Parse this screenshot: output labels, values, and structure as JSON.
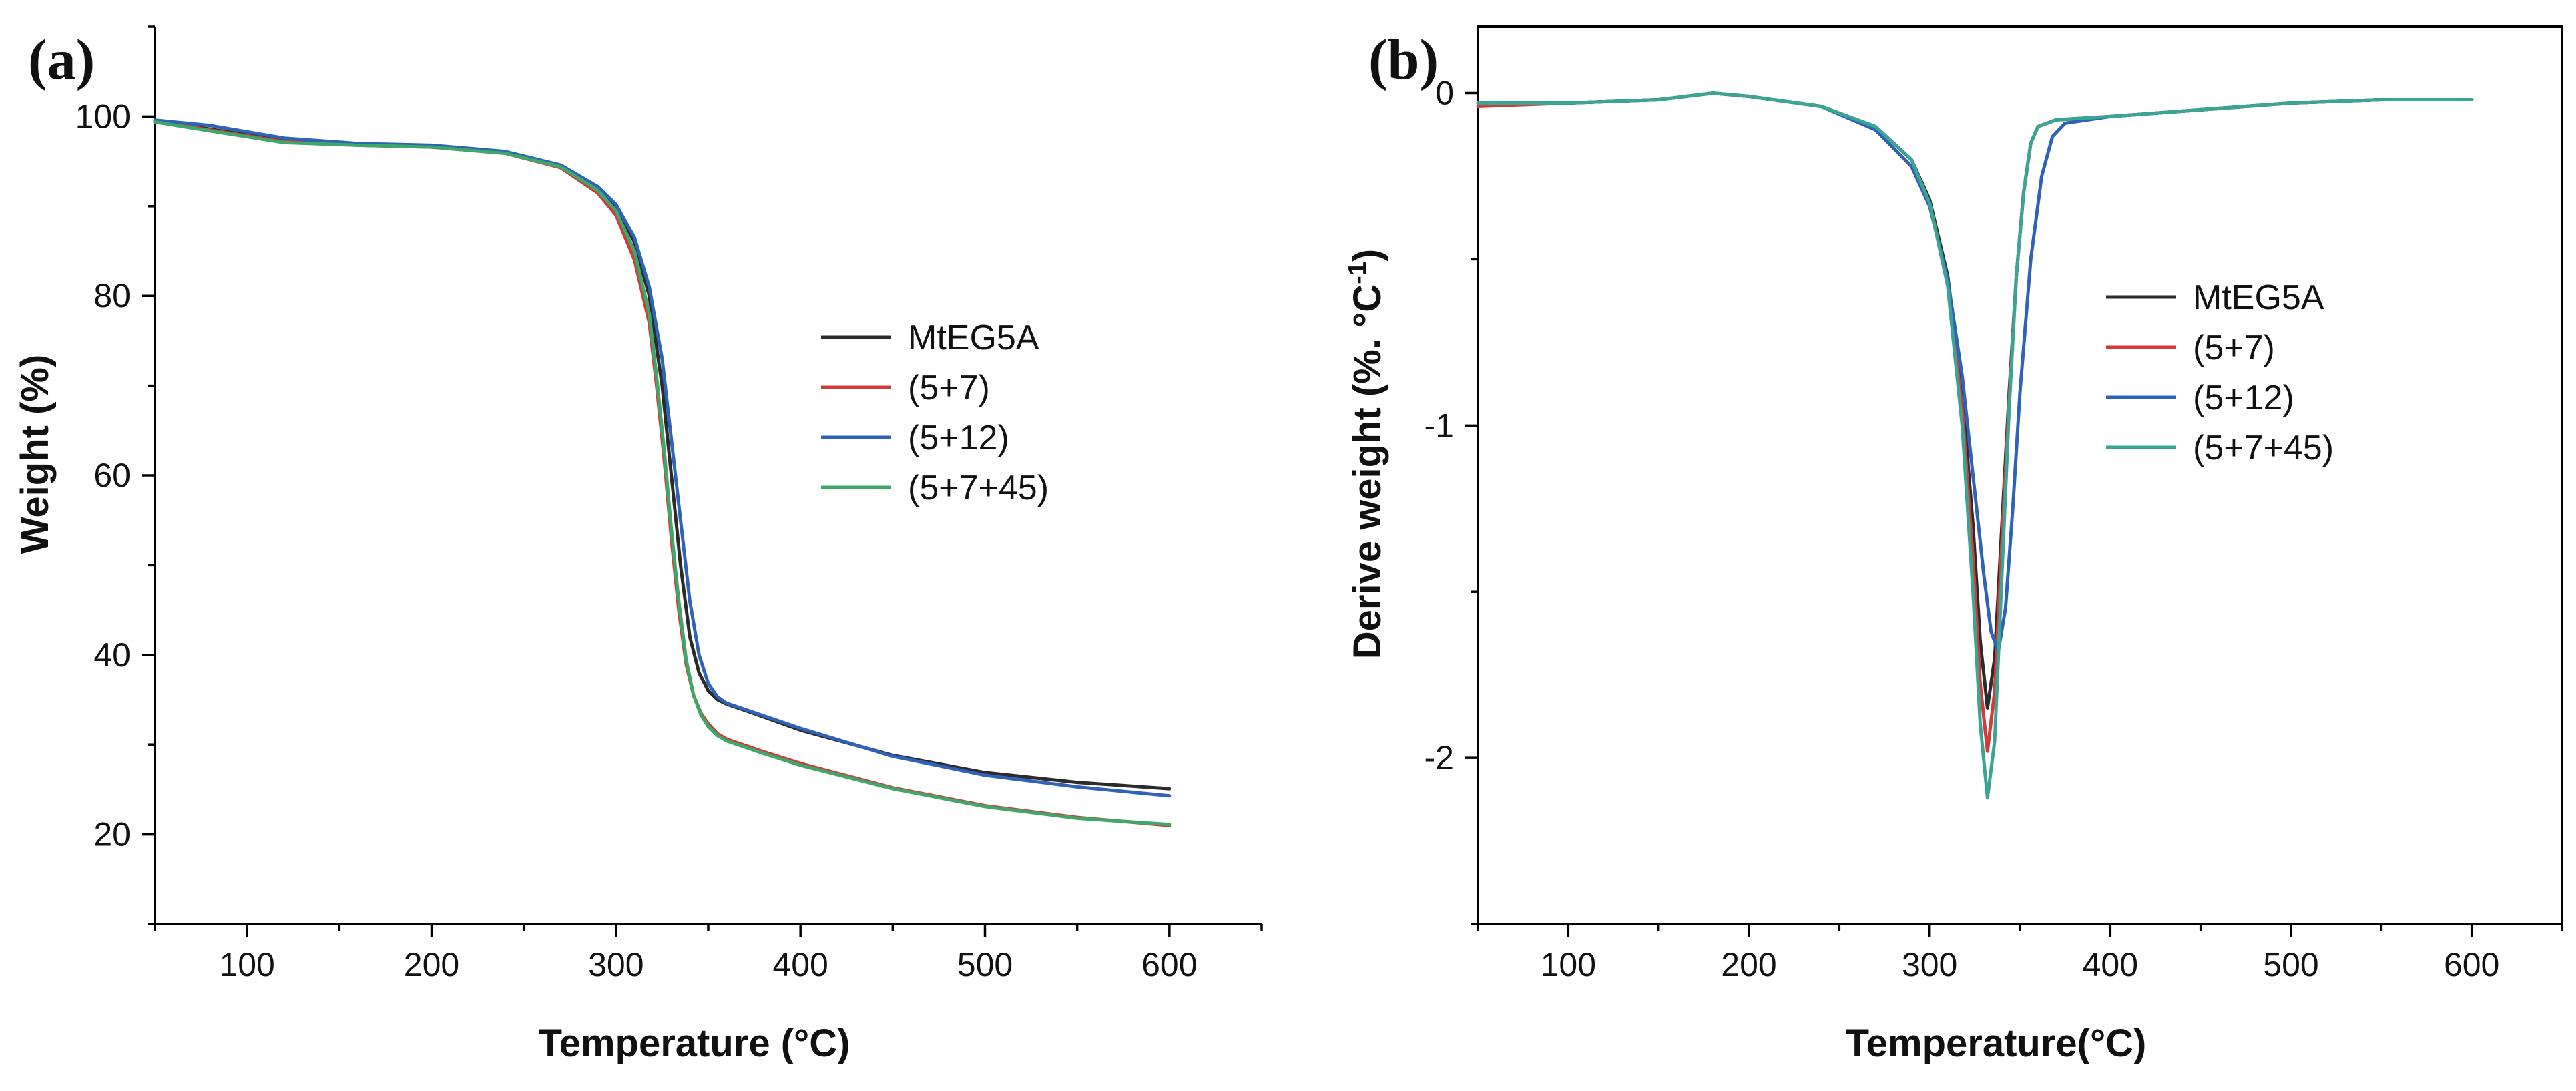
{
  "chart_data": [
    {
      "panel_label": "(a)",
      "type": "line",
      "xlabel": "Temperature (°C)",
      "ylabel": "Weight (%)",
      "xlim": [
        50,
        650
      ],
      "ylim": [
        10,
        110
      ],
      "xticks": [
        100,
        200,
        300,
        400,
        500,
        600
      ],
      "xtick_labels": [
        "100",
        "200",
        "300",
        "400",
        "500",
        "600"
      ],
      "yticks": [
        20,
        40,
        60,
        80,
        100
      ],
      "ytick_labels": [
        "20",
        "40",
        "60",
        "80",
        "100"
      ],
      "legend_position": "center-right",
      "series": [
        {
          "name": "MtEG5A",
          "color": "#2b2b2b",
          "x": [
            50,
            80,
            120,
            160,
            200,
            240,
            270,
            290,
            300,
            310,
            318,
            325,
            330,
            335,
            340,
            345,
            350,
            355,
            360,
            370,
            400,
            450,
            500,
            550,
            600
          ],
          "y": [
            99.5,
            98.6,
            97.3,
            96.9,
            96.7,
            96.0,
            94.5,
            92.0,
            90.0,
            86.0,
            80.0,
            70.0,
            60.0,
            50.0,
            42.0,
            38.0,
            36.0,
            35.0,
            34.5,
            33.8,
            31.6,
            28.8,
            26.9,
            25.8,
            25.1
          ]
        },
        {
          "name": "(5+7)",
          "color": "#d43a3a",
          "x": [
            50,
            80,
            120,
            160,
            200,
            240,
            270,
            290,
            300,
            310,
            318,
            322,
            326,
            330,
            334,
            338,
            342,
            346,
            350,
            355,
            360,
            380,
            400,
            450,
            500,
            550,
            600
          ],
          "y": [
            99.5,
            98.5,
            97.2,
            96.8,
            96.6,
            95.9,
            94.3,
            91.5,
            89.0,
            84.0,
            77.0,
            70.0,
            62.0,
            53.0,
            45.0,
            39.0,
            35.5,
            33.5,
            32.3,
            31.2,
            30.6,
            29.2,
            27.9,
            25.2,
            23.2,
            21.9,
            21.0
          ]
        },
        {
          "name": "(5+12)",
          "color": "#2e63b8",
          "x": [
            50,
            80,
            120,
            160,
            200,
            240,
            270,
            290,
            300,
            310,
            318,
            325,
            330,
            335,
            340,
            345,
            350,
            355,
            360,
            370,
            400,
            450,
            500,
            550,
            600
          ],
          "y": [
            99.6,
            99.0,
            97.6,
            97.0,
            96.8,
            96.1,
            94.6,
            92.2,
            90.2,
            86.5,
            81.0,
            73.0,
            64.0,
            55.0,
            46.0,
            40.0,
            36.8,
            35.3,
            34.6,
            33.9,
            31.8,
            28.7,
            26.6,
            25.3,
            24.3
          ]
        },
        {
          "name": "(5+7+45)",
          "color": "#3da86a",
          "x": [
            50,
            80,
            120,
            160,
            200,
            240,
            270,
            290,
            300,
            310,
            318,
            322,
            326,
            330,
            334,
            338,
            342,
            346,
            350,
            355,
            360,
            380,
            400,
            450,
            500,
            550,
            600
          ],
          "y": [
            99.4,
            98.4,
            97.1,
            96.8,
            96.6,
            95.9,
            94.4,
            91.8,
            89.5,
            85.0,
            78.0,
            71.0,
            63.0,
            54.0,
            46.0,
            39.5,
            35.5,
            33.3,
            32.0,
            31.0,
            30.4,
            29.0,
            27.7,
            25.1,
            23.1,
            21.8,
            21.1
          ]
        }
      ]
    },
    {
      "panel_label": "(b)",
      "type": "line",
      "xlabel": "Temperature(°C)",
      "ylabel_main": "Derive weight (%. °C",
      "ylabel_sup": "-1",
      "ylabel_end": ")",
      "xlim": [
        50,
        650
      ],
      "ylim": [
        -2.5,
        0.2
      ],
      "xticks": [
        100,
        200,
        300,
        400,
        500,
        600
      ],
      "xtick_labels": [
        "100",
        "200",
        "300",
        "400",
        "500",
        "600"
      ],
      "yticks": [
        0,
        -1,
        -2
      ],
      "ytick_labels": [
        "0",
        "-1",
        "-2"
      ],
      "legend_position": "center-right",
      "series": [
        {
          "name": "MtEG5A",
          "color": "#2b2b2b",
          "x": [
            50,
            100,
            150,
            180,
            200,
            240,
            270,
            290,
            300,
            310,
            318,
            324,
            328,
            332,
            336,
            340,
            344,
            348,
            352,
            356,
            360,
            370,
            400,
            450,
            500,
            550,
            600
          ],
          "y": [
            -0.03,
            -0.03,
            -0.02,
            0.0,
            -0.01,
            -0.04,
            -0.1,
            -0.2,
            -0.32,
            -0.55,
            -0.9,
            -1.3,
            -1.65,
            -1.85,
            -1.7,
            -1.3,
            -0.9,
            -0.55,
            -0.3,
            -0.15,
            -0.1,
            -0.08,
            -0.07,
            -0.05,
            -0.03,
            -0.02,
            -0.02
          ]
        },
        {
          "name": "(5+7)",
          "color": "#d43a3a",
          "x": [
            50,
            100,
            150,
            180,
            200,
            240,
            270,
            290,
            300,
            310,
            318,
            324,
            328,
            332,
            336,
            340,
            344,
            348,
            352,
            356,
            360,
            370,
            400,
            450,
            500,
            550,
            600
          ],
          "y": [
            -0.04,
            -0.03,
            -0.02,
            0.0,
            -0.01,
            -0.04,
            -0.1,
            -0.2,
            -0.33,
            -0.57,
            -0.95,
            -1.4,
            -1.78,
            -1.98,
            -1.8,
            -1.35,
            -0.92,
            -0.55,
            -0.3,
            -0.15,
            -0.1,
            -0.08,
            -0.07,
            -0.05,
            -0.03,
            -0.02,
            -0.02
          ]
        },
        {
          "name": "(5+12)",
          "color": "#2e63b8",
          "x": [
            50,
            100,
            150,
            180,
            200,
            240,
            270,
            290,
            300,
            310,
            318,
            324,
            330,
            334,
            338,
            342,
            346,
            350,
            356,
            362,
            368,
            375,
            400,
            450,
            500,
            550,
            600
          ],
          "y": [
            -0.03,
            -0.03,
            -0.02,
            0.0,
            -0.01,
            -0.04,
            -0.11,
            -0.22,
            -0.34,
            -0.56,
            -0.85,
            -1.15,
            -1.45,
            -1.62,
            -1.68,
            -1.55,
            -1.25,
            -0.9,
            -0.5,
            -0.25,
            -0.13,
            -0.09,
            -0.07,
            -0.05,
            -0.03,
            -0.02,
            -0.02
          ]
        },
        {
          "name": "(5+7+45)",
          "color": "#3aa595",
          "x": [
            50,
            100,
            150,
            180,
            200,
            240,
            270,
            290,
            300,
            310,
            318,
            324,
            328,
            332,
            336,
            340,
            344,
            348,
            352,
            356,
            360,
            370,
            400,
            450,
            500,
            550,
            600
          ],
          "y": [
            -0.03,
            -0.03,
            -0.02,
            0.0,
            -0.01,
            -0.04,
            -0.1,
            -0.2,
            -0.33,
            -0.58,
            -1.0,
            -1.5,
            -1.9,
            -2.12,
            -1.95,
            -1.45,
            -0.95,
            -0.55,
            -0.3,
            -0.15,
            -0.1,
            -0.08,
            -0.07,
            -0.05,
            -0.03,
            -0.02,
            -0.02
          ]
        }
      ]
    }
  ]
}
